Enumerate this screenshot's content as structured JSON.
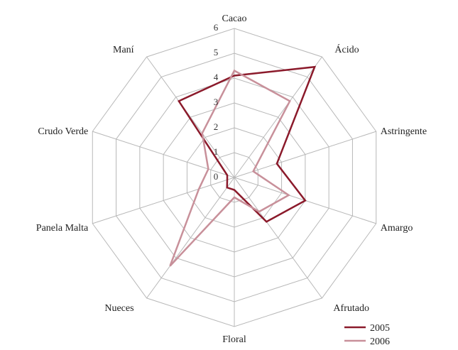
{
  "chart_data": {
    "type": "radar",
    "categories": [
      "Cacao",
      "Ácido",
      "Astringente",
      "Amargo",
      "Afrutado",
      "Floral",
      "Nueces",
      "Panela Malta",
      "Crudo Verde",
      "Maní"
    ],
    "rlim": [
      0,
      6
    ],
    "ticks": [
      "0",
      "1",
      "2",
      "3",
      "4",
      "5",
      "6"
    ],
    "grid": true,
    "legend_position": "bottom-right",
    "series": [
      {
        "name": "2005",
        "color": "#8b1a2b",
        "values": [
          4.1,
          5.5,
          1.8,
          3.0,
          2.2,
          0.5,
          0.5,
          0.3,
          0.3,
          3.8
        ]
      },
      {
        "name": "2006",
        "color": "#c8909a",
        "values": [
          4.3,
          3.8,
          0.8,
          2.3,
          1.7,
          0.8,
          4.4,
          1.5,
          1.1,
          2.2
        ]
      }
    ]
  }
}
